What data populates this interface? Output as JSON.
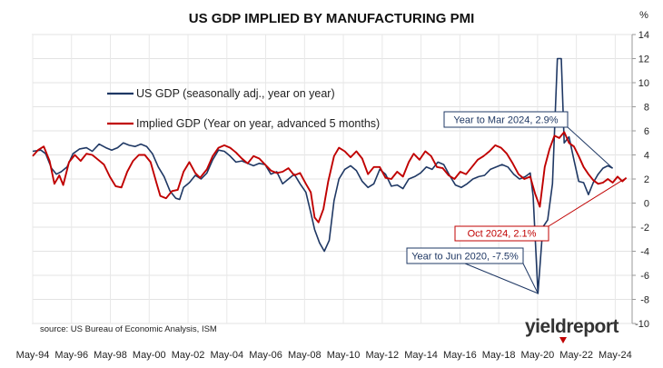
{
  "chart_data": {
    "type": "line",
    "title": "US GDP IMPLIED BY MANUFACTURING PMI",
    "ylabel": "%",
    "ylim": [
      -10,
      14
    ],
    "yticks": [
      -10,
      -8,
      -6,
      -4,
      -2,
      0,
      2,
      4,
      6,
      8,
      10,
      12,
      14
    ],
    "xlim": [
      1994.33,
      2025.2
    ],
    "xticks": [
      {
        "label": "May-94",
        "value": 1994.33
      },
      {
        "label": "May-96",
        "value": 1996.33
      },
      {
        "label": "May-98",
        "value": 1998.33
      },
      {
        "label": "May-00",
        "value": 2000.33
      },
      {
        "label": "May-02",
        "value": 2002.33
      },
      {
        "label": "May-04",
        "value": 2004.33
      },
      {
        "label": "May-06",
        "value": 2006.33
      },
      {
        "label": "May-08",
        "value": 2008.33
      },
      {
        "label": "May-10",
        "value": 2010.33
      },
      {
        "label": "May-12",
        "value": 2012.33
      },
      {
        "label": "May-14",
        "value": 2014.33
      },
      {
        "label": "May-16",
        "value": 2016.33
      },
      {
        "label": "May-18",
        "value": 2018.33
      },
      {
        "label": "May-20",
        "value": 2020.33
      },
      {
        "label": "May-22",
        "value": 2022.33
      },
      {
        "label": "May-24",
        "value": 2024.33
      }
    ],
    "grid": true,
    "series": [
      {
        "name": "US GDP (seasonally adj., year on year)",
        "color": "#1f3864",
        "points": [
          [
            1994.33,
            4.3
          ],
          [
            1994.75,
            4.4
          ],
          [
            1995.0,
            4.1
          ],
          [
            1995.3,
            2.9
          ],
          [
            1995.55,
            2.4
          ],
          [
            1995.8,
            2.6
          ],
          [
            1996.1,
            3.0
          ],
          [
            1996.4,
            4.1
          ],
          [
            1996.75,
            4.5
          ],
          [
            1997.1,
            4.6
          ],
          [
            1997.4,
            4.3
          ],
          [
            1997.75,
            4.9
          ],
          [
            1998.1,
            4.6
          ],
          [
            1998.4,
            4.4
          ],
          [
            1998.7,
            4.6
          ],
          [
            1999.0,
            5.0
          ],
          [
            1999.3,
            4.8
          ],
          [
            1999.6,
            4.7
          ],
          [
            1999.9,
            4.9
          ],
          [
            2000.2,
            4.7
          ],
          [
            2000.5,
            4.1
          ],
          [
            2000.8,
            3.0
          ],
          [
            2001.1,
            2.2
          ],
          [
            2001.4,
            1.0
          ],
          [
            2001.7,
            0.4
          ],
          [
            2001.9,
            0.3
          ],
          [
            2002.1,
            1.3
          ],
          [
            2002.4,
            1.7
          ],
          [
            2002.7,
            2.3
          ],
          [
            2003.0,
            2.0
          ],
          [
            2003.3,
            2.5
          ],
          [
            2003.6,
            3.6
          ],
          [
            2003.9,
            4.4
          ],
          [
            2004.2,
            4.3
          ],
          [
            2004.5,
            3.9
          ],
          [
            2004.8,
            3.4
          ],
          [
            2005.1,
            3.5
          ],
          [
            2005.4,
            3.3
          ],
          [
            2005.7,
            3.1
          ],
          [
            2006.0,
            3.3
          ],
          [
            2006.3,
            3.2
          ],
          [
            2006.6,
            2.4
          ],
          [
            2006.9,
            2.6
          ],
          [
            2007.2,
            1.6
          ],
          [
            2007.5,
            2.0
          ],
          [
            2007.8,
            2.4
          ],
          [
            2008.1,
            1.6
          ],
          [
            2008.4,
            0.9
          ],
          [
            2008.65,
            -0.8
          ],
          [
            2008.85,
            -2.2
          ],
          [
            2009.1,
            -3.3
          ],
          [
            2009.35,
            -4.0
          ],
          [
            2009.6,
            -3.1
          ],
          [
            2009.85,
            0.2
          ],
          [
            2010.1,
            2.0
          ],
          [
            2010.4,
            2.8
          ],
          [
            2010.7,
            3.1
          ],
          [
            2011.0,
            2.7
          ],
          [
            2011.3,
            1.8
          ],
          [
            2011.6,
            1.3
          ],
          [
            2011.9,
            1.6
          ],
          [
            2012.2,
            2.8
          ],
          [
            2012.5,
            2.4
          ],
          [
            2012.8,
            1.4
          ],
          [
            2013.1,
            1.5
          ],
          [
            2013.4,
            1.2
          ],
          [
            2013.7,
            2.0
          ],
          [
            2014.0,
            2.2
          ],
          [
            2014.3,
            2.5
          ],
          [
            2014.6,
            3.0
          ],
          [
            2014.9,
            2.8
          ],
          [
            2015.2,
            3.4
          ],
          [
            2015.5,
            3.2
          ],
          [
            2015.8,
            2.3
          ],
          [
            2016.1,
            1.5
          ],
          [
            2016.4,
            1.3
          ],
          [
            2016.7,
            1.6
          ],
          [
            2017.0,
            2.0
          ],
          [
            2017.3,
            2.2
          ],
          [
            2017.6,
            2.3
          ],
          [
            2017.9,
            2.8
          ],
          [
            2018.2,
            3.0
          ],
          [
            2018.5,
            3.2
          ],
          [
            2018.8,
            3.0
          ],
          [
            2019.1,
            2.4
          ],
          [
            2019.4,
            2.0
          ],
          [
            2019.7,
            2.2
          ],
          [
            2019.95,
            2.5
          ],
          [
            2020.1,
            0.6
          ],
          [
            2020.35,
            -7.5
          ],
          [
            2020.6,
            -2.0
          ],
          [
            2020.85,
            -1.4
          ],
          [
            2021.1,
            1.6
          ],
          [
            2021.35,
            12.0
          ],
          [
            2021.55,
            12.0
          ],
          [
            2021.7,
            5.0
          ],
          [
            2021.95,
            5.5
          ],
          [
            2022.2,
            3.6
          ],
          [
            2022.45,
            1.8
          ],
          [
            2022.7,
            1.7
          ],
          [
            2022.95,
            0.7
          ],
          [
            2023.2,
            1.7
          ],
          [
            2023.45,
            2.4
          ],
          [
            2023.7,
            2.9
          ],
          [
            2023.95,
            3.1
          ],
          [
            2024.2,
            2.9
          ]
        ]
      },
      {
        "name": "Implied GDP (Year on year, advanced 5 months)",
        "color": "#c00000",
        "points": [
          [
            1994.33,
            3.9
          ],
          [
            1994.6,
            4.4
          ],
          [
            1994.9,
            4.7
          ],
          [
            1995.2,
            3.5
          ],
          [
            1995.45,
            1.6
          ],
          [
            1995.7,
            2.3
          ],
          [
            1995.9,
            1.5
          ],
          [
            1996.2,
            3.4
          ],
          [
            1996.5,
            4.0
          ],
          [
            1996.8,
            3.5
          ],
          [
            1997.1,
            4.1
          ],
          [
            1997.4,
            4.0
          ],
          [
            1997.7,
            3.6
          ],
          [
            1998.0,
            3.2
          ],
          [
            1998.3,
            2.2
          ],
          [
            1998.6,
            1.4
          ],
          [
            1998.9,
            1.3
          ],
          [
            1999.2,
            2.6
          ],
          [
            1999.5,
            3.5
          ],
          [
            1999.8,
            4.0
          ],
          [
            2000.1,
            4.0
          ],
          [
            2000.4,
            3.4
          ],
          [
            2000.7,
            1.7
          ],
          [
            2000.9,
            0.6
          ],
          [
            2001.2,
            0.4
          ],
          [
            2001.5,
            1.0
          ],
          [
            2001.8,
            1.1
          ],
          [
            2002.1,
            2.6
          ],
          [
            2002.4,
            3.4
          ],
          [
            2002.7,
            2.5
          ],
          [
            2002.95,
            2.1
          ],
          [
            2003.3,
            2.8
          ],
          [
            2003.6,
            3.9
          ],
          [
            2003.9,
            4.6
          ],
          [
            2004.2,
            4.8
          ],
          [
            2004.5,
            4.6
          ],
          [
            2004.8,
            4.2
          ],
          [
            2005.1,
            3.7
          ],
          [
            2005.4,
            3.3
          ],
          [
            2005.7,
            3.9
          ],
          [
            2006.0,
            3.7
          ],
          [
            2006.3,
            3.2
          ],
          [
            2006.6,
            2.7
          ],
          [
            2006.9,
            2.5
          ],
          [
            2007.2,
            2.6
          ],
          [
            2007.5,
            2.9
          ],
          [
            2007.8,
            2.3
          ],
          [
            2008.1,
            2.5
          ],
          [
            2008.4,
            1.6
          ],
          [
            2008.65,
            0.9
          ],
          [
            2008.85,
            -1.2
          ],
          [
            2009.05,
            -1.6
          ],
          [
            2009.3,
            -0.5
          ],
          [
            2009.55,
            1.8
          ],
          [
            2009.85,
            3.9
          ],
          [
            2010.1,
            4.6
          ],
          [
            2010.4,
            4.3
          ],
          [
            2010.7,
            3.8
          ],
          [
            2011.0,
            4.3
          ],
          [
            2011.3,
            3.7
          ],
          [
            2011.6,
            2.4
          ],
          [
            2011.9,
            3.0
          ],
          [
            2012.2,
            3.0
          ],
          [
            2012.5,
            2.1
          ],
          [
            2012.8,
            2.0
          ],
          [
            2013.1,
            2.6
          ],
          [
            2013.4,
            2.2
          ],
          [
            2013.7,
            3.4
          ],
          [
            2013.95,
            4.1
          ],
          [
            2014.25,
            3.6
          ],
          [
            2014.55,
            4.3
          ],
          [
            2014.85,
            3.9
          ],
          [
            2015.15,
            3.0
          ],
          [
            2015.45,
            2.9
          ],
          [
            2015.75,
            2.3
          ],
          [
            2016.05,
            2.0
          ],
          [
            2016.35,
            2.6
          ],
          [
            2016.65,
            2.4
          ],
          [
            2016.95,
            3.0
          ],
          [
            2017.25,
            3.6
          ],
          [
            2017.55,
            3.9
          ],
          [
            2017.85,
            4.3
          ],
          [
            2018.15,
            4.8
          ],
          [
            2018.45,
            4.6
          ],
          [
            2018.75,
            4.1
          ],
          [
            2019.05,
            3.3
          ],
          [
            2019.35,
            2.4
          ],
          [
            2019.65,
            2.0
          ],
          [
            2019.95,
            2.2
          ],
          [
            2020.2,
            0.8
          ],
          [
            2020.45,
            -0.3
          ],
          [
            2020.7,
            3.0
          ],
          [
            2020.95,
            4.5
          ],
          [
            2021.2,
            5.6
          ],
          [
            2021.45,
            5.4
          ],
          [
            2021.7,
            5.9
          ],
          [
            2021.95,
            5.0
          ],
          [
            2022.2,
            4.7
          ],
          [
            2022.45,
            3.9
          ],
          [
            2022.7,
            3.0
          ],
          [
            2022.95,
            2.4
          ],
          [
            2023.2,
            1.9
          ],
          [
            2023.45,
            1.6
          ],
          [
            2023.7,
            1.7
          ],
          [
            2023.95,
            2.0
          ],
          [
            2024.2,
            1.7
          ],
          [
            2024.45,
            2.2
          ],
          [
            2024.7,
            1.8
          ],
          [
            2024.9,
            2.1
          ]
        ]
      }
    ],
    "annotations": [
      {
        "text": "Year to Mar 2024, 2.9%",
        "color": "#1f3864",
        "x": 2024.2,
        "y": 2.9
      },
      {
        "text": "Oct 2024, 2.1%",
        "color": "#c00000",
        "x": 2024.9,
        "y": 2.1
      },
      {
        "text": "Year to Jun 2020, -7.5%",
        "color": "#1f3864",
        "x": 2020.35,
        "y": -7.5
      }
    ],
    "source": "source: US Bureau of Economic Analysis, ISM",
    "logo": "yieldreport"
  }
}
